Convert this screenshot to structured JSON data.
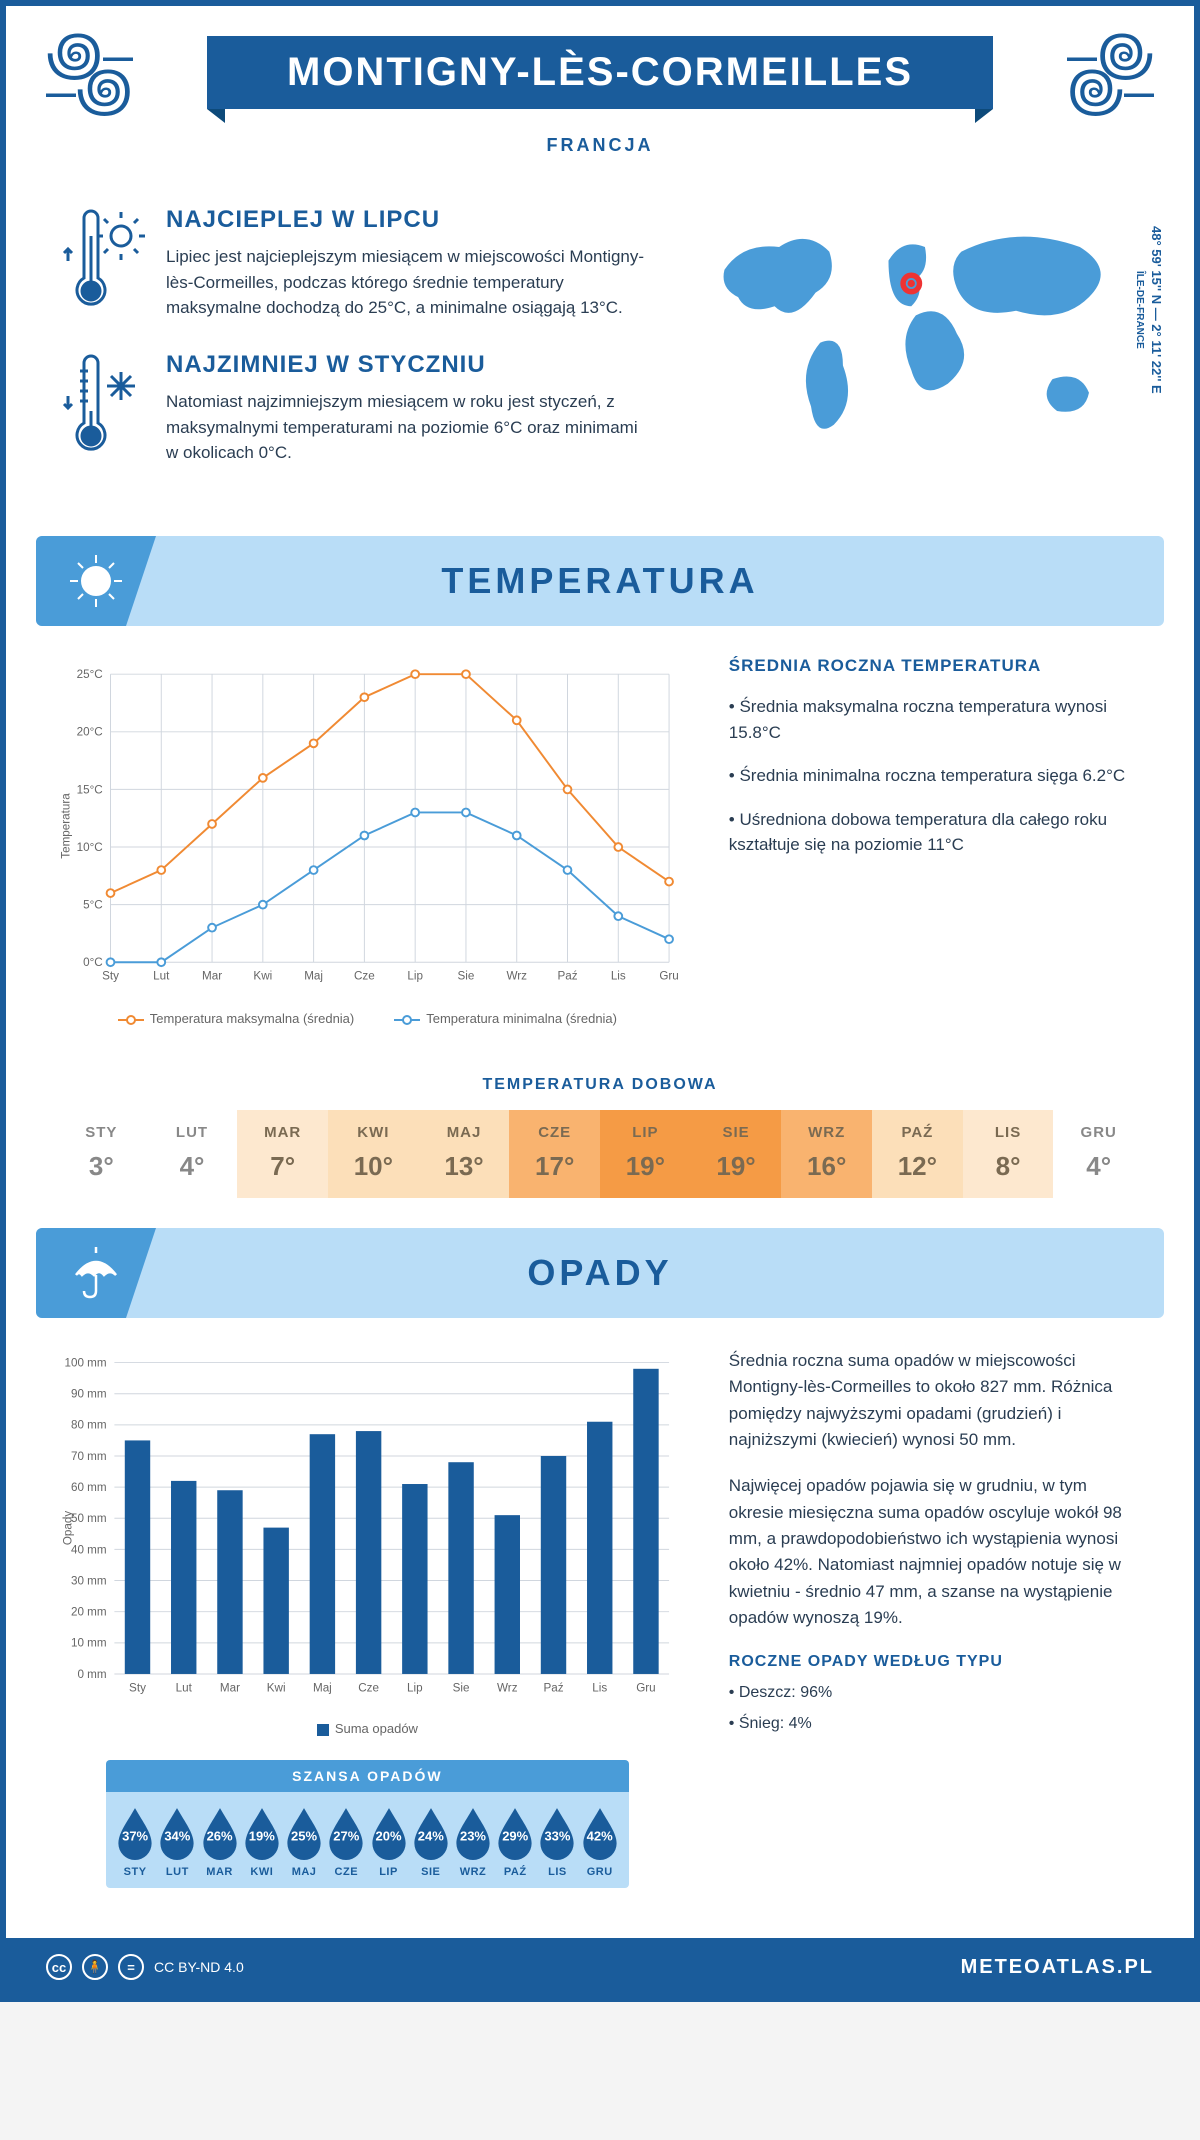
{
  "header": {
    "title": "MONTIGNY-LÈS-CORMEILLES",
    "subtitle": "FRANCJA"
  },
  "coords": {
    "lat": "48° 59' 15'' N — 2° 11' 22'' E",
    "region": "ÎLE-DE-FRANCE"
  },
  "intro": {
    "hot": {
      "title": "NAJCIEPLEJ W LIPCU",
      "text": "Lipiec jest najcieplejszym miesiącem w miejscowości Montigny-lès-Cormeilles, podczas którego średnie temperatury maksymalne dochodzą do 25°C, a minimalne osiągają 13°C."
    },
    "cold": {
      "title": "NAJZIMNIEJ W STYCZNIU",
      "text": "Natomiast najzimniejszym miesiącem w roku jest styczeń, z maksymalnymi temperaturami na poziomie 6°C oraz minimami w okolicach 0°C."
    }
  },
  "sections": {
    "temperature": "TEMPERATURA",
    "precipitation": "OPADY"
  },
  "months_short": [
    "Sty",
    "Lut",
    "Mar",
    "Kwi",
    "Maj",
    "Cze",
    "Lip",
    "Sie",
    "Wrz",
    "Paź",
    "Lis",
    "Gru"
  ],
  "months_upper": [
    "STY",
    "LUT",
    "MAR",
    "KWI",
    "MAJ",
    "CZE",
    "LIP",
    "SIE",
    "WRZ",
    "PAŹ",
    "LIS",
    "GRU"
  ],
  "temp_chart": {
    "type": "line",
    "ylabel": "Temperatura",
    "ylim": [
      0,
      25
    ],
    "ytick_step": 5,
    "ysuffix": "°C",
    "series": {
      "max": {
        "label": "Temperatura maksymalna (średnia)",
        "color": "#f08a33",
        "values": [
          6,
          8,
          12,
          16,
          19,
          23,
          25,
          25,
          21,
          15,
          10,
          7
        ]
      },
      "min": {
        "label": "Temperatura minimalna (średnia)",
        "color": "#4a9cd8",
        "values": [
          0,
          0,
          3,
          5,
          8,
          11,
          13,
          13,
          11,
          8,
          4,
          2
        ]
      }
    }
  },
  "temp_info": {
    "title": "ŚREDNIA ROCZNA TEMPERATURA",
    "bullets": [
      "Średnia maksymalna roczna temperatura wynosi 15.8°C",
      "Średnia minimalna roczna temperatura sięga 6.2°C",
      "Uśredniona dobowa temperatura dla całego roku kształtuje się na poziomie 11°C"
    ]
  },
  "daily_temp": {
    "title": "TEMPERATURA DOBOWA",
    "values": [
      "3°",
      "4°",
      "7°",
      "10°",
      "13°",
      "17°",
      "19°",
      "19°",
      "16°",
      "12°",
      "8°",
      "4°"
    ],
    "colors": [
      "#ffffff",
      "#ffffff",
      "#fde8cf",
      "#fcdfb9",
      "#fcdfb9",
      "#f9b36f",
      "#f59b45",
      "#f59b45",
      "#f9b36f",
      "#fcdfb9",
      "#fde8cf",
      "#ffffff"
    ]
  },
  "precip_chart": {
    "type": "bar",
    "ylabel": "Opady",
    "ylim": [
      0,
      100
    ],
    "ytick_step": 10,
    "ysuffix": " mm",
    "legend": "Suma opadów",
    "bar_color": "#1a5c9b",
    "values": [
      75,
      62,
      59,
      47,
      77,
      78,
      61,
      68,
      51,
      70,
      81,
      98
    ]
  },
  "precip_info": {
    "p1": "Średnia roczna suma opadów w miejscowości Montigny-lès-Cormeilles to około 827 mm. Różnica pomiędzy najwyższymi opadami (grudzień) i najniższymi (kwiecień) wynosi 50 mm.",
    "p2": "Najwięcej opadów pojawia się w grudniu, w tym okresie miesięczna suma opadów oscyluje wokół 98 mm, a prawdopodobieństwo ich wystąpienia wynosi około 42%. Natomiast najmniej opadów notuje się w kwietniu - średnio 47 mm, a szanse na wystąpienie opadów wynoszą 19%."
  },
  "precip_chance": {
    "title": "SZANSA OPADÓW",
    "values": [
      "37%",
      "34%",
      "26%",
      "19%",
      "25%",
      "27%",
      "20%",
      "24%",
      "23%",
      "29%",
      "33%",
      "42%"
    ],
    "drop_color": "#1a5c9b"
  },
  "precip_type": {
    "title": "ROCZNE OPADY WEDŁUG TYPU",
    "items": [
      "Deszcz: 96%",
      "Śnieg: 4%"
    ]
  },
  "footer": {
    "license": "CC BY-ND 4.0",
    "site": "METEOATLAS.PL"
  }
}
